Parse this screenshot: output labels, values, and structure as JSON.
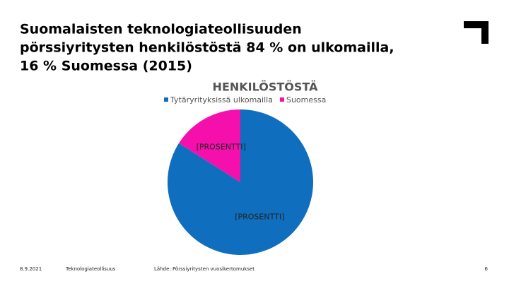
{
  "chart_data": {
    "type": "pie",
    "title": [
      "Suomalaisten teknologiateollisuuden",
      "pörssiyritysten henkilöstöstä 84 % on ulkomailla,",
      "16 % Suomessa (2015)"
    ],
    "subtitle": "HENKILÖSTÖSTÄ",
    "categories": [
      "Tytäryrityksissä ulkomailla",
      "Suomessa"
    ],
    "values": [
      84,
      16
    ],
    "value_labels": [
      "[PROSENTTI]",
      "[PROSENTTI]"
    ],
    "colors": [
      "#0f6ebe",
      "#f50fad"
    ],
    "legend": "top"
  },
  "footer": {
    "date": "8.9.2021",
    "organization": "Teknologiateollisuus",
    "source": "Lähde: Pörssiyritysten vuosikertomukset",
    "page": "6"
  }
}
